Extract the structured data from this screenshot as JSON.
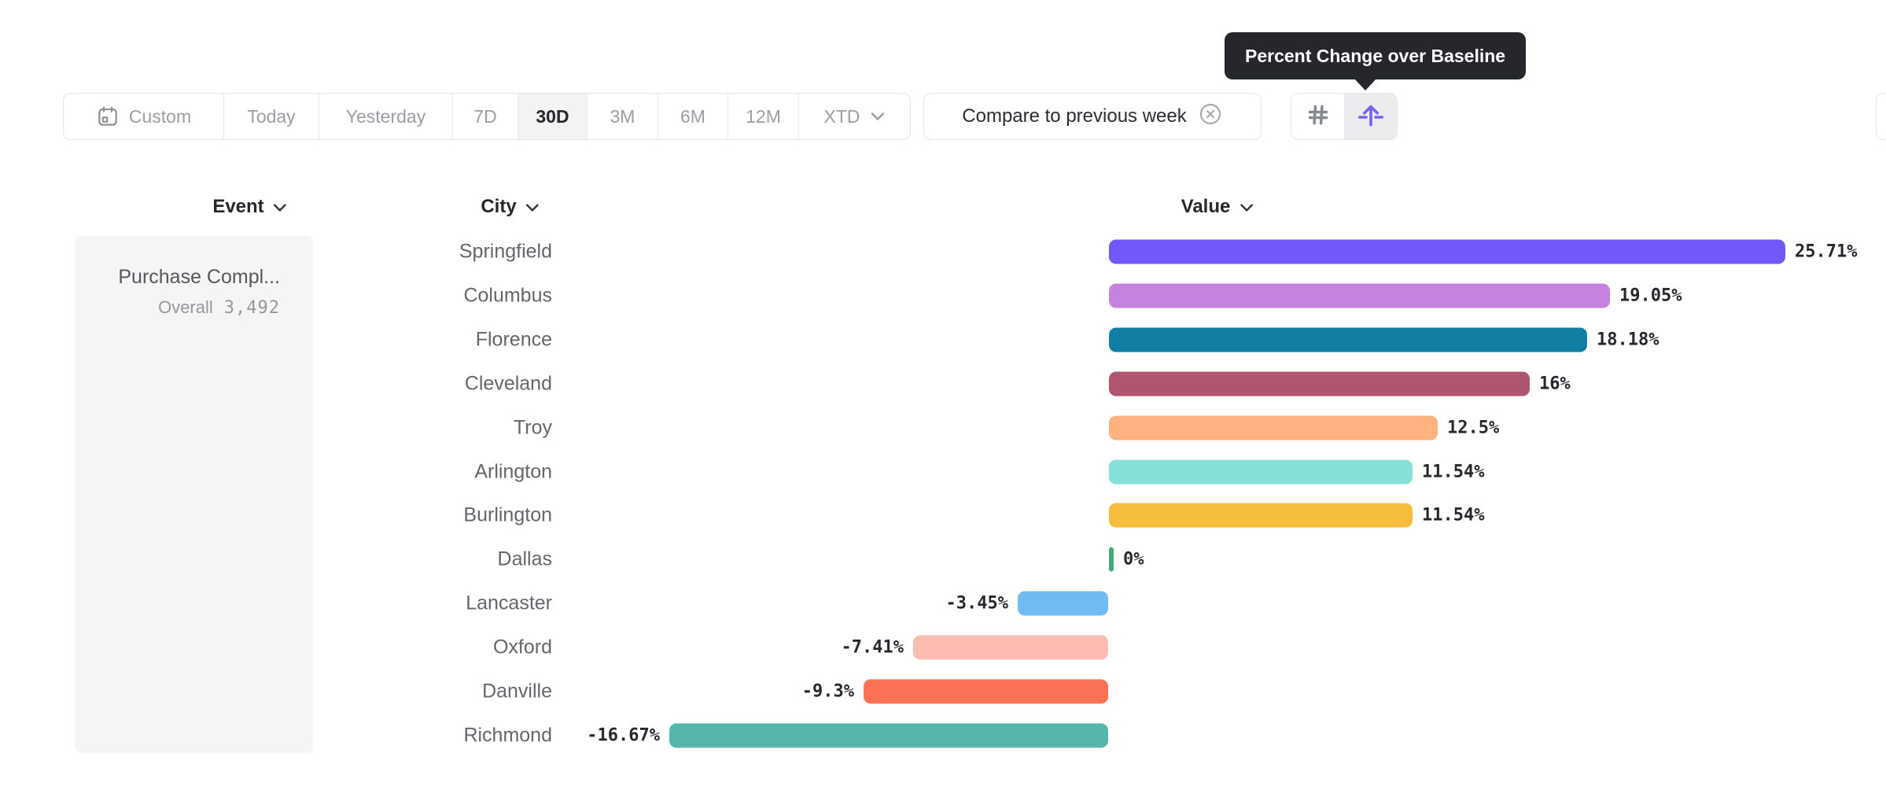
{
  "tooltip": {
    "text": "Percent Change over Baseline"
  },
  "toolbar": {
    "date_ranges": [
      {
        "label": "Custom",
        "icon": "calendar-icon",
        "selected": false
      },
      {
        "label": "Today",
        "selected": false
      },
      {
        "label": "Yesterday",
        "selected": false
      },
      {
        "label": "7D",
        "selected": false
      },
      {
        "label": "30D",
        "selected": true
      },
      {
        "label": "3M",
        "selected": false
      },
      {
        "label": "6M",
        "selected": false
      },
      {
        "label": "12M",
        "selected": false
      },
      {
        "label": "XTD",
        "icon": "chevron-down-icon",
        "selected": false
      }
    ],
    "compare": {
      "label": "Compare to previous week",
      "icon": "circle-x-icon"
    },
    "view_modes": [
      {
        "name": "grid-view",
        "icon": "grid-hash-icon",
        "selected": false
      },
      {
        "name": "percent-change-over-baseline-view",
        "icon": "baseline-arrow-icon",
        "selected": true,
        "accent_color": "#7561F2"
      }
    ]
  },
  "columns": [
    {
      "label": "Event",
      "icon": "chevron-down-icon"
    },
    {
      "label": "City",
      "icon": "chevron-down-icon"
    },
    {
      "label": "Value",
      "icon": "chevron-down-icon"
    }
  ],
  "event_panel": {
    "event_name": "Purchase Compl...",
    "metric_label": "Overall",
    "metric_value": "3,492"
  },
  "chart_data": {
    "type": "bar",
    "orientation": "horizontal",
    "title": "Percent Change over Baseline",
    "comparison": "Compare to previous week",
    "categories": [
      "Springfield",
      "Columbus",
      "Florence",
      "Cleveland",
      "Troy",
      "Arlington",
      "Burlington",
      "Dallas",
      "Lancaster",
      "Oxford",
      "Danville",
      "Richmond"
    ],
    "values": [
      25.71,
      19.05,
      18.18,
      16,
      12.5,
      11.54,
      11.54,
      0,
      -3.45,
      -7.41,
      -9.3,
      -16.67
    ],
    "labels": [
      "25.71%",
      "19.05%",
      "18.18%",
      "16%",
      "12.5%",
      "11.54%",
      "11.54%",
      "0%",
      "-3.45%",
      "-7.41%",
      "-9.3%",
      "-16.67%"
    ],
    "colors": [
      "#7457F8",
      "#C583DF",
      "#117EA3",
      "#AF5570",
      "#FFB27D",
      "#85E0D8",
      "#F7BD3C",
      "#3CAE76",
      "#6FBBF2",
      "#FCBCB2",
      "#FC7256",
      "#57B6AB"
    ],
    "xlim": [
      -16.67,
      25.71
    ],
    "grid": false,
    "legend": false
  }
}
